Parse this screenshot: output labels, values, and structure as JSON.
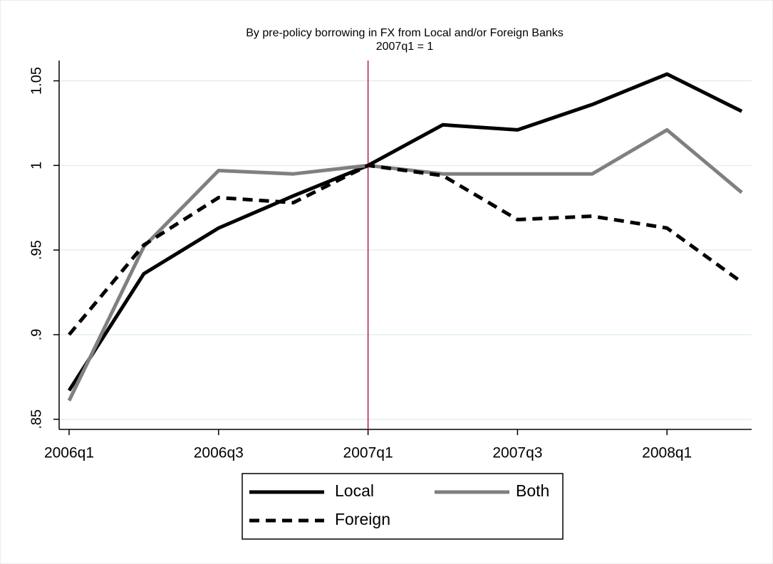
{
  "chart_data": {
    "type": "line",
    "title": "By pre-policy borrowing in FX from Local and/or Foreign Banks",
    "subtitle": "2007q1 = 1",
    "categories": [
      "2006q1",
      null,
      "2006q3",
      null,
      "2007q1",
      null,
      "2007q3",
      null,
      "2008q1",
      null
    ],
    "series": [
      {
        "name": "Local",
        "color": "#000000",
        "style": "solid",
        "values": [
          0.867,
          0.936,
          0.963,
          0.982,
          1.0,
          1.024,
          1.021,
          1.036,
          1.054,
          1.032
        ]
      },
      {
        "name": "Both",
        "color": "#808080",
        "style": "solid",
        "values": [
          0.861,
          0.952,
          0.997,
          0.995,
          1.0,
          0.995,
          0.995,
          0.995,
          1.021,
          0.984
        ]
      },
      {
        "name": "Foreign",
        "color": "#000000",
        "style": "dashed",
        "values": [
          0.9,
          0.953,
          0.981,
          0.978,
          1.0,
          0.994,
          0.968,
          0.97,
          0.963,
          0.931
        ]
      }
    ],
    "ylim": [
      0.844,
      1.062
    ],
    "yticks": [
      {
        "value": 0.85,
        "label": ".85"
      },
      {
        "value": 0.9,
        "label": ".9"
      },
      {
        "value": 0.95,
        "label": ".95"
      },
      1,
      1.05
    ],
    "grid": true,
    "vline_index": 4,
    "vline_color": "#b5174a",
    "legend": "bottom"
  }
}
